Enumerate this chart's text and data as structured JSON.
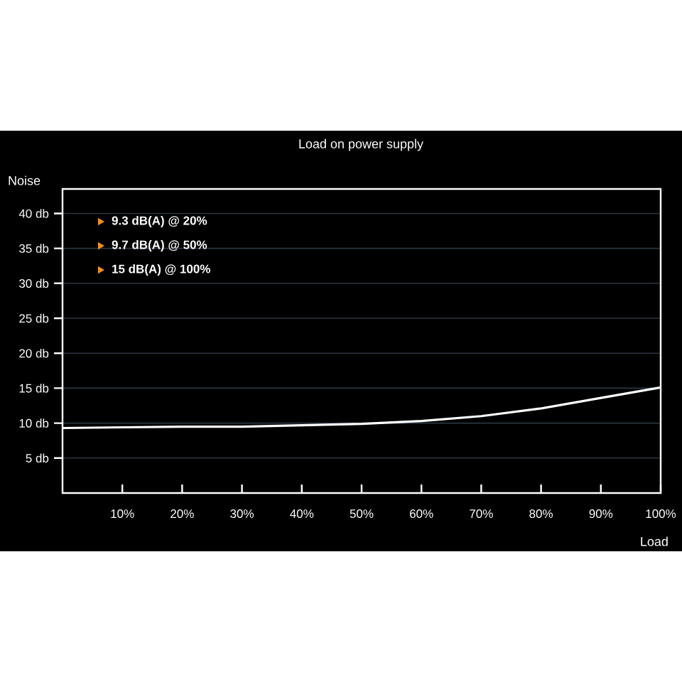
{
  "chart_data": {
    "type": "line",
    "title": "Load on power supply",
    "xlabel": "Load",
    "ylabel": "Noise",
    "x": [
      0,
      10,
      20,
      30,
      40,
      50,
      60,
      70,
      80,
      90,
      100
    ],
    "series": [
      {
        "color": "#ffffff",
        "values": [
          9.3,
          9.4,
          9.5,
          9.5,
          9.7,
          9.9,
          10.3,
          11.0,
          12.1,
          13.6,
          15.1
        ]
      }
    ],
    "xlim": [
      0,
      100
    ],
    "ylim": [
      0,
      43.5
    ],
    "xticks": [
      {
        "value": 10,
        "label": "10%"
      },
      {
        "value": 20,
        "label": "20%"
      },
      {
        "value": 30,
        "label": "30%"
      },
      {
        "value": 40,
        "label": "40%"
      },
      {
        "value": 50,
        "label": "50%"
      },
      {
        "value": 60,
        "label": "60%"
      },
      {
        "value": 70,
        "label": "70%"
      },
      {
        "value": 80,
        "label": "80%"
      },
      {
        "value": 90,
        "label": "90%"
      },
      {
        "value": 100,
        "label": "100%"
      }
    ],
    "yticks": [
      {
        "value": 5,
        "label": "5 db"
      },
      {
        "value": 10,
        "label": "10 db"
      },
      {
        "value": 15,
        "label": "15 db"
      },
      {
        "value": 20,
        "label": "20 db"
      },
      {
        "value": 25,
        "label": "25 db"
      },
      {
        "value": 30,
        "label": "30 db"
      },
      {
        "value": 35,
        "label": "35 db"
      },
      {
        "value": 40,
        "label": "40 db"
      }
    ],
    "grid": "y",
    "annotations": [
      "**9.3 dB(A) @ 20%**",
      "**9.7 dB(A) @ 50%**",
      "**15  dB(A) @ 100%**"
    ]
  }
}
